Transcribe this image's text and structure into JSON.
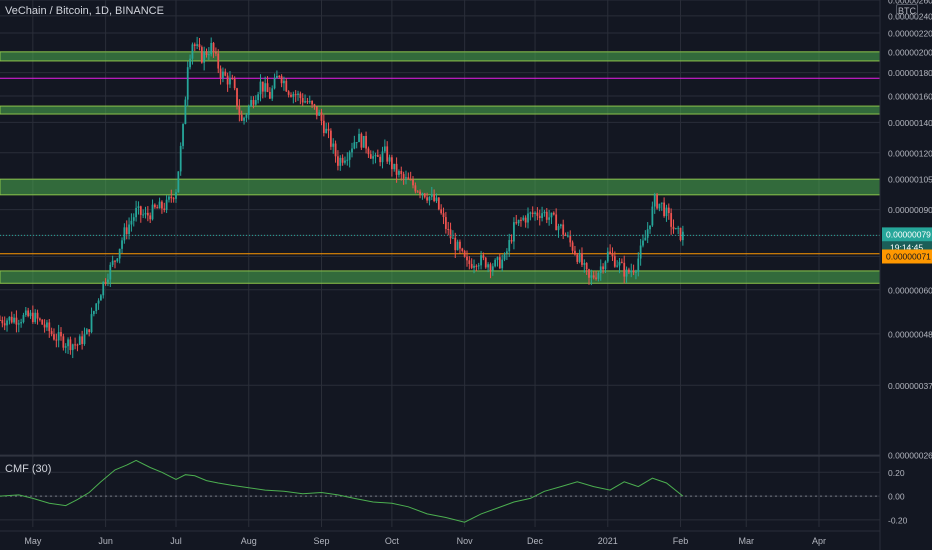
{
  "header": {
    "symbol_title": "VeChain / Bitcoin, 1D, BINANCE",
    "currency": "BTC"
  },
  "chart_data": {
    "type": "candlestick",
    "xlim": [
      "2020-04-17",
      "2021-04-27"
    ],
    "x_tick_labels": [
      "May",
      "Jun",
      "Jul",
      "Aug",
      "Sep",
      "Oct",
      "Nov",
      "Dec",
      "2021",
      "Feb",
      "Mar",
      "Apr"
    ],
    "x_tick_dates": [
      "2020-05-01",
      "2020-06-01",
      "2020-07-01",
      "2020-08-01",
      "2020-09-01",
      "2020-10-01",
      "2020-11-01",
      "2020-12-01",
      "2021-01-01",
      "2021-02-01",
      "2021-03-01",
      "2021-04-01"
    ],
    "y_scale": "log",
    "ylim": [
      2.6e-07,
      2.6e-06
    ],
    "y_tick_labels": [
      "0.00000260",
      "0.00000240",
      "0.00000220",
      "0.00000200",
      "0.00000180",
      "0.00000160",
      "0.00000140",
      "0.00000120",
      "0.00000105",
      "0.00000090",
      "0.00000079",
      "0.00000071",
      "0.00000060",
      "0.00000048",
      "0.00000037",
      "0.00000026"
    ],
    "y_axis_labels": [
      "0.00000260",
      "0.00000240",
      "0.00000220",
      "0.00000200",
      "0.00000180",
      "0.00000160",
      "0.00000140",
      "0.00000120",
      "0.00000105",
      "0.00000090",
      "0.00000060",
      "0.00000048",
      "0.00000037",
      "0.00000026"
    ],
    "price_path": [
      [
        "2020-04-17",
        5.15e-07
      ],
      [
        "2020-04-25",
        5.2e-07
      ],
      [
        "2020-05-01",
        5.25e-07
      ],
      [
        "2020-05-05",
        5.05e-07
      ],
      [
        "2020-05-10",
        4.75e-07
      ],
      [
        "2020-05-15",
        4.6e-07
      ],
      [
        "2020-05-20",
        4.55e-07
      ],
      [
        "2020-05-24",
        4.8e-07
      ],
      [
        "2020-05-28",
        5.6e-07
      ],
      [
        "2020-06-01",
        6.4e-07
      ],
      [
        "2020-06-05",
        7e-07
      ],
      [
        "2020-06-09",
        8e-07
      ],
      [
        "2020-06-14",
        8.9e-07
      ],
      [
        "2020-06-18",
        8.7e-07
      ],
      [
        "2020-06-22",
        9e-07
      ],
      [
        "2020-06-27",
        9.2e-07
      ],
      [
        "2020-07-01",
        1e-06
      ],
      [
        "2020-07-04",
        1.35e-06
      ],
      [
        "2020-07-06",
        1.9e-06
      ],
      [
        "2020-07-08",
        2.1e-06
      ],
      [
        "2020-07-12",
        1.95e-06
      ],
      [
        "2020-07-16",
        2.05e-06
      ],
      [
        "2020-07-20",
        1.8e-06
      ],
      [
        "2020-07-25",
        1.7e-06
      ],
      [
        "2020-07-29",
        1.4e-06
      ],
      [
        "2020-08-02",
        1.55e-06
      ],
      [
        "2020-08-06",
        1.7e-06
      ],
      [
        "2020-08-10",
        1.6e-06
      ],
      [
        "2020-08-14",
        1.8e-06
      ],
      [
        "2020-08-18",
        1.65e-06
      ],
      [
        "2020-08-22",
        1.6e-06
      ],
      [
        "2020-08-26",
        1.55e-06
      ],
      [
        "2020-08-31",
        1.45e-06
      ],
      [
        "2020-09-04",
        1.3e-06
      ],
      [
        "2020-09-08",
        1.15e-06
      ],
      [
        "2020-09-12",
        1.2e-06
      ],
      [
        "2020-09-16",
        1.3e-06
      ],
      [
        "2020-09-20",
        1.25e-06
      ],
      [
        "2020-09-24",
        1.15e-06
      ],
      [
        "2020-09-28",
        1.2e-06
      ],
      [
        "2020-10-02",
        1.1e-06
      ],
      [
        "2020-10-06",
        1.05e-06
      ],
      [
        "2020-10-10",
        1.02e-06
      ],
      [
        "2020-10-15",
        9.8e-07
      ],
      [
        "2020-10-20",
        9.3e-07
      ],
      [
        "2020-10-25",
        8e-07
      ],
      [
        "2020-10-29",
        7.4e-07
      ],
      [
        "2020-11-02",
        6.8e-07
      ],
      [
        "2020-11-06",
        7e-07
      ],
      [
        "2020-11-10",
        6.9e-07
      ],
      [
        "2020-11-14",
        6.8e-07
      ],
      [
        "2020-11-18",
        7e-07
      ],
      [
        "2020-11-22",
        8.2e-07
      ],
      [
        "2020-11-26",
        8.6e-07
      ],
      [
        "2020-11-30",
        8.8e-07
      ],
      [
        "2020-12-04",
        8.9e-07
      ],
      [
        "2020-12-08",
        8.6e-07
      ],
      [
        "2020-12-12",
        8.2e-07
      ],
      [
        "2020-12-16",
        7.6e-07
      ],
      [
        "2020-12-20",
        7e-07
      ],
      [
        "2020-12-24",
        6.3e-07
      ],
      [
        "2020-12-28",
        6.6e-07
      ],
      [
        "2021-01-01",
        7.2e-07
      ],
      [
        "2021-01-05",
        6.9e-07
      ],
      [
        "2021-01-09",
        6.5e-07
      ],
      [
        "2021-01-13",
        6.8e-07
      ],
      [
        "2021-01-17",
        7.8e-07
      ],
      [
        "2021-01-21",
        9.4e-07
      ],
      [
        "2021-01-24",
        9.2e-07
      ],
      [
        "2021-01-27",
        8.6e-07
      ],
      [
        "2021-01-30",
        8e-07
      ],
      [
        "2021-02-02",
        7.9e-07
      ]
    ],
    "horizontal_zones": [
      {
        "name": "resistance-zone-1",
        "low": 1.91e-06,
        "high": 2e-06,
        "color": "#4caf50"
      },
      {
        "name": "resistance-zone-2",
        "low": 1.46e-06,
        "high": 1.52e-06,
        "color": "#4caf50"
      },
      {
        "name": "resistance-zone-3",
        "low": 9.7e-07,
        "high": 1.05e-06,
        "color": "#4caf50"
      },
      {
        "name": "support-zone",
        "low": 6.2e-07,
        "high": 6.6e-07,
        "color": "#4caf50"
      }
    ],
    "horizontal_lines": [
      {
        "name": "magenta-line",
        "value": 1.75e-06,
        "color": "#e91ee9"
      },
      {
        "name": "orange-line",
        "value": 7.2e-07,
        "color": "#ff9800"
      }
    ],
    "last_price": {
      "value": "0.00000079",
      "countdown": "19:14:45",
      "color": "#26a69a"
    },
    "orange_marker": {
      "value": "0.00000071",
      "color": "#ff9800"
    },
    "colors": {
      "up": "#26a69a",
      "down": "#ef5350",
      "background": "#131722",
      "grid": "#2a2e39",
      "text": "#b2b5be"
    }
  },
  "cmf": {
    "label": "CMF (30)",
    "ylim": [
      -0.26,
      0.32
    ],
    "y_tick_labels": [
      "0.20",
      "0.00",
      "-0.20"
    ],
    "line_color": "#4caf50",
    "path": [
      [
        "2020-04-17",
        0.0
      ],
      [
        "2020-04-25",
        0.01
      ],
      [
        "2020-05-01",
        -0.02
      ],
      [
        "2020-05-08",
        -0.06
      ],
      [
        "2020-05-15",
        -0.08
      ],
      [
        "2020-05-20",
        -0.03
      ],
      [
        "2020-05-25",
        0.03
      ],
      [
        "2020-05-30",
        0.12
      ],
      [
        "2020-06-05",
        0.22
      ],
      [
        "2020-06-10",
        0.26
      ],
      [
        "2020-06-14",
        0.3
      ],
      [
        "2020-06-20",
        0.24
      ],
      [
        "2020-06-25",
        0.2
      ],
      [
        "2020-07-01",
        0.14
      ],
      [
        "2020-07-05",
        0.18
      ],
      [
        "2020-07-09",
        0.17
      ],
      [
        "2020-07-14",
        0.13
      ],
      [
        "2020-07-19",
        0.11
      ],
      [
        "2020-07-25",
        0.09
      ],
      [
        "2020-08-01",
        0.07
      ],
      [
        "2020-08-08",
        0.05
      ],
      [
        "2020-08-16",
        0.04
      ],
      [
        "2020-08-24",
        0.02
      ],
      [
        "2020-09-01",
        0.03
      ],
      [
        "2020-09-08",
        0.01
      ],
      [
        "2020-09-15",
        -0.02
      ],
      [
        "2020-09-23",
        -0.05
      ],
      [
        "2020-10-01",
        -0.06
      ],
      [
        "2020-10-08",
        -0.09
      ],
      [
        "2020-10-16",
        -0.15
      ],
      [
        "2020-10-24",
        -0.18
      ],
      [
        "2020-11-01",
        -0.22
      ],
      [
        "2020-11-08",
        -0.15
      ],
      [
        "2020-11-15",
        -0.1
      ],
      [
        "2020-11-22",
        -0.05
      ],
      [
        "2020-11-29",
        -0.02
      ],
      [
        "2020-12-05",
        0.04
      ],
      [
        "2020-12-12",
        0.08
      ],
      [
        "2020-12-19",
        0.12
      ],
      [
        "2020-12-26",
        0.08
      ],
      [
        "2021-01-02",
        0.05
      ],
      [
        "2021-01-08",
        0.12
      ],
      [
        "2021-01-14",
        0.08
      ],
      [
        "2021-01-20",
        0.15
      ],
      [
        "2021-01-26",
        0.11
      ],
      [
        "2021-02-02",
        0.0
      ]
    ]
  },
  "x_axis": {
    "labels": [
      "May",
      "Jun",
      "Jul",
      "Aug",
      "Sep",
      "Oct",
      "Nov",
      "Dec",
      "2021",
      "Feb",
      "Mar",
      "Apr"
    ]
  }
}
